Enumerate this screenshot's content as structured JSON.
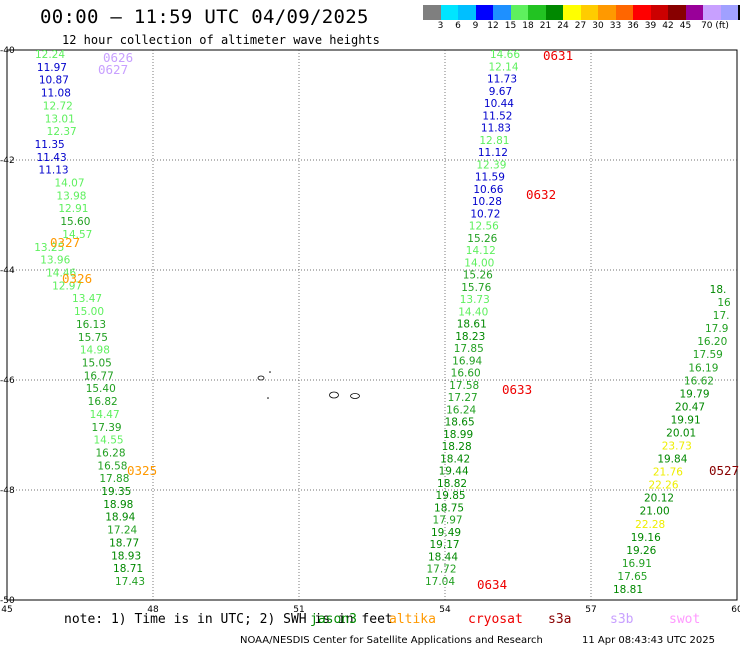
{
  "title": "00:00 – 11:59 UTC 04/09/2025",
  "subtitle": "12 hour collection of altimeter wave heights",
  "colorbar": {
    "colors": [
      "#7f7f7f",
      "#00e5ff",
      "#00bfff",
      "#0000ff",
      "#1e90ff",
      "#5ef05e",
      "#22c322",
      "#008800",
      "#ffff00",
      "#ffcc00",
      "#ff9900",
      "#ff6600",
      "#ff0000",
      "#cc0000",
      "#880000",
      "#990099",
      "#c8a0ff",
      "#a0a0ff",
      "#000000"
    ],
    "labels": [
      "3",
      "6",
      "9",
      "12",
      "15",
      "18",
      "21",
      "24",
      "27",
      "30",
      "33",
      "36",
      "39",
      "42",
      "45",
      "70 (ft)"
    ]
  },
  "map": {
    "lat_labels": [
      "-40",
      "-42",
      "-44",
      "-46",
      "-48",
      "-50"
    ],
    "lon_labels": [
      "45",
      "48",
      "51",
      "54",
      "57",
      "60"
    ],
    "lat_range": [
      -40,
      -50
    ],
    "lon_range": [
      45,
      60
    ]
  },
  "tracks": [
    {
      "name": "track-west",
      "points": [
        {
          "v": "12.24",
          "c": "#5ef05e"
        },
        {
          "v": "11.97",
          "c": "#0000cc"
        },
        {
          "v": "10.87",
          "c": "#0000cc"
        },
        {
          "v": "11.08",
          "c": "#0000cc"
        },
        {
          "v": "12.72",
          "c": "#5ef05e"
        },
        {
          "v": "13.01",
          "c": "#5ef05e"
        },
        {
          "v": "12.37",
          "c": "#5ef05e"
        },
        {
          "v": "11.35",
          "c": "#0000cc"
        },
        {
          "v": "11.43",
          "c": "#0000cc"
        },
        {
          "v": "11.13",
          "c": "#0000cc"
        },
        {
          "v": "14.07",
          "c": "#5ef05e"
        },
        {
          "v": "13.98",
          "c": "#5ef05e"
        },
        {
          "v": "12.91",
          "c": "#5ef05e"
        },
        {
          "v": "15.60",
          "c": "#22a022"
        },
        {
          "v": "14.57",
          "c": "#5ef05e"
        },
        {
          "v": "13.25",
          "c": "#5ef05e"
        },
        {
          "v": "13.96",
          "c": "#5ef05e"
        },
        {
          "v": "14.46",
          "c": "#5ef05e"
        },
        {
          "v": "12.97",
          "c": "#5ef05e"
        },
        {
          "v": "13.47",
          "c": "#5ef05e"
        },
        {
          "v": "15.00",
          "c": "#5ef05e"
        },
        {
          "v": "16.13",
          "c": "#22a022"
        },
        {
          "v": "15.75",
          "c": "#22a022"
        },
        {
          "v": "14.98",
          "c": "#5ef05e"
        },
        {
          "v": "15.05",
          "c": "#22a022"
        },
        {
          "v": "16.77",
          "c": "#22a022"
        },
        {
          "v": "15.40",
          "c": "#22a022"
        },
        {
          "v": "16.82",
          "c": "#22a022"
        },
        {
          "v": "14.47",
          "c": "#5ef05e"
        },
        {
          "v": "17.39",
          "c": "#22a022"
        },
        {
          "v": "14.55",
          "c": "#5ef05e"
        },
        {
          "v": "16.28",
          "c": "#22a022"
        },
        {
          "v": "16.58",
          "c": "#22a022"
        },
        {
          "v": "17.88",
          "c": "#22a022"
        },
        {
          "v": "19.35",
          "c": "#008800"
        },
        {
          "v": "18.98",
          "c": "#008800"
        },
        {
          "v": "18.94",
          "c": "#008800"
        },
        {
          "v": "17.24",
          "c": "#22a022"
        },
        {
          "v": "18.77",
          "c": "#008800"
        },
        {
          "v": "18.93",
          "c": "#008800"
        },
        {
          "v": "18.71",
          "c": "#008800"
        },
        {
          "v": "17.43",
          "c": "#22a022"
        }
      ]
    },
    {
      "name": "track-central",
      "points": [
        {
          "v": "14.66",
          "c": "#5ef05e"
        },
        {
          "v": "12.14",
          "c": "#5ef05e"
        },
        {
          "v": "11.73",
          "c": "#0000cc"
        },
        {
          "v": "9.67",
          "c": "#0000cc"
        },
        {
          "v": "10.44",
          "c": "#0000cc"
        },
        {
          "v": "11.52",
          "c": "#0000cc"
        },
        {
          "v": "11.83",
          "c": "#0000cc"
        },
        {
          "v": "12.81",
          "c": "#5ef05e"
        },
        {
          "v": "11.12",
          "c": "#0000cc"
        },
        {
          "v": "12.39",
          "c": "#5ef05e"
        },
        {
          "v": "11.59",
          "c": "#0000cc"
        },
        {
          "v": "10.66",
          "c": "#0000cc"
        },
        {
          "v": "10.28",
          "c": "#0000cc"
        },
        {
          "v": "10.72",
          "c": "#0000cc"
        },
        {
          "v": "12.56",
          "c": "#5ef05e"
        },
        {
          "v": "15.26",
          "c": "#22a022"
        },
        {
          "v": "14.12",
          "c": "#5ef05e"
        },
        {
          "v": "14.00",
          "c": "#5ef05e"
        },
        {
          "v": "15.26",
          "c": "#22a022"
        },
        {
          "v": "15.76",
          "c": "#22a022"
        },
        {
          "v": "13.73",
          "c": "#5ef05e"
        },
        {
          "v": "14.40",
          "c": "#5ef05e"
        },
        {
          "v": "18.61",
          "c": "#008800"
        },
        {
          "v": "18.23",
          "c": "#008800"
        },
        {
          "v": "17.85",
          "c": "#22a022"
        },
        {
          "v": "16.94",
          "c": "#22a022"
        },
        {
          "v": "16.60",
          "c": "#22a022"
        },
        {
          "v": "17.58",
          "c": "#22a022"
        },
        {
          "v": "17.27",
          "c": "#22a022"
        },
        {
          "v": "16.24",
          "c": "#22a022"
        },
        {
          "v": "18.65",
          "c": "#008800"
        },
        {
          "v": "18.99",
          "c": "#008800"
        },
        {
          "v": "18.28",
          "c": "#008800"
        },
        {
          "v": "18.42",
          "c": "#008800"
        },
        {
          "v": "19.44",
          "c": "#008800"
        },
        {
          "v": "18.82",
          "c": "#008800"
        },
        {
          "v": "19.85",
          "c": "#008800"
        },
        {
          "v": "18.75",
          "c": "#008800"
        },
        {
          "v": "17.97",
          "c": "#22a022"
        },
        {
          "v": "19.49",
          "c": "#008800"
        },
        {
          "v": "19.17",
          "c": "#008800"
        },
        {
          "v": "18.44",
          "c": "#008800"
        },
        {
          "v": "17.72",
          "c": "#22a022"
        },
        {
          "v": "17.04",
          "c": "#22a022"
        }
      ]
    },
    {
      "name": "track-east",
      "points": [
        {
          "v": "18.",
          "c": "#008800"
        },
        {
          "v": "16",
          "c": "#22a022"
        },
        {
          "v": "17.",
          "c": "#22a022"
        },
        {
          "v": "17.9",
          "c": "#22a022"
        },
        {
          "v": "16.20",
          "c": "#22a022"
        },
        {
          "v": "17.59",
          "c": "#22a022"
        },
        {
          "v": "16.19",
          "c": "#22a022"
        },
        {
          "v": "16.62",
          "c": "#22a022"
        },
        {
          "v": "19.79",
          "c": "#008800"
        },
        {
          "v": "20.47",
          "c": "#008800"
        },
        {
          "v": "19.91",
          "c": "#008800"
        },
        {
          "v": "20.01",
          "c": "#008800"
        },
        {
          "v": "23.73",
          "c": "#eeee00"
        },
        {
          "v": "19.84",
          "c": "#008800"
        },
        {
          "v": "21.76",
          "c": "#eeee00"
        },
        {
          "v": "22.26",
          "c": "#eeee00"
        },
        {
          "v": "20.12",
          "c": "#008800"
        },
        {
          "v": "21.00",
          "c": "#008800"
        },
        {
          "v": "22.28",
          "c": "#eeee00"
        },
        {
          "v": "19.16",
          "c": "#008800"
        },
        {
          "v": "19.26",
          "c": "#008800"
        },
        {
          "v": "16.91",
          "c": "#22a022"
        },
        {
          "v": "17.65",
          "c": "#22a022"
        },
        {
          "v": "18.81",
          "c": "#008800"
        }
      ]
    }
  ],
  "pass_labels": [
    {
      "text": "0626",
      "color": "#c8a0ff"
    },
    {
      "text": "0627",
      "color": "#c8a0ff"
    },
    {
      "text": "0327",
      "color": "#ff9900"
    },
    {
      "text": "0326",
      "color": "#ff9900"
    },
    {
      "text": "0325",
      "color": "#ff9900"
    },
    {
      "text": "0631",
      "color": "#ee0000"
    },
    {
      "text": "0632",
      "color": "#ee0000"
    },
    {
      "text": "0633",
      "color": "#ee0000"
    },
    {
      "text": "0634",
      "color": "#ee0000"
    },
    {
      "text": "0527",
      "color": "#880000"
    }
  ],
  "note": "note: 1) Time is in UTC; 2) SWH is in feet",
  "legend": [
    {
      "label": "jason3",
      "color": "#008800"
    },
    {
      "label": "altika",
      "color": "#ff9900"
    },
    {
      "label": "cryosat",
      "color": "#ee0000"
    },
    {
      "label": "s3a",
      "color": "#880000"
    },
    {
      "label": "s3b",
      "color": "#c8a0ff"
    },
    {
      "label": "swot",
      "color": "#ff99ff"
    }
  ],
  "footer_left": "NOAA/NESDIS Center for Satellite Applications and Research",
  "footer_right": "11 Apr 08:43:43 UTC 2025"
}
